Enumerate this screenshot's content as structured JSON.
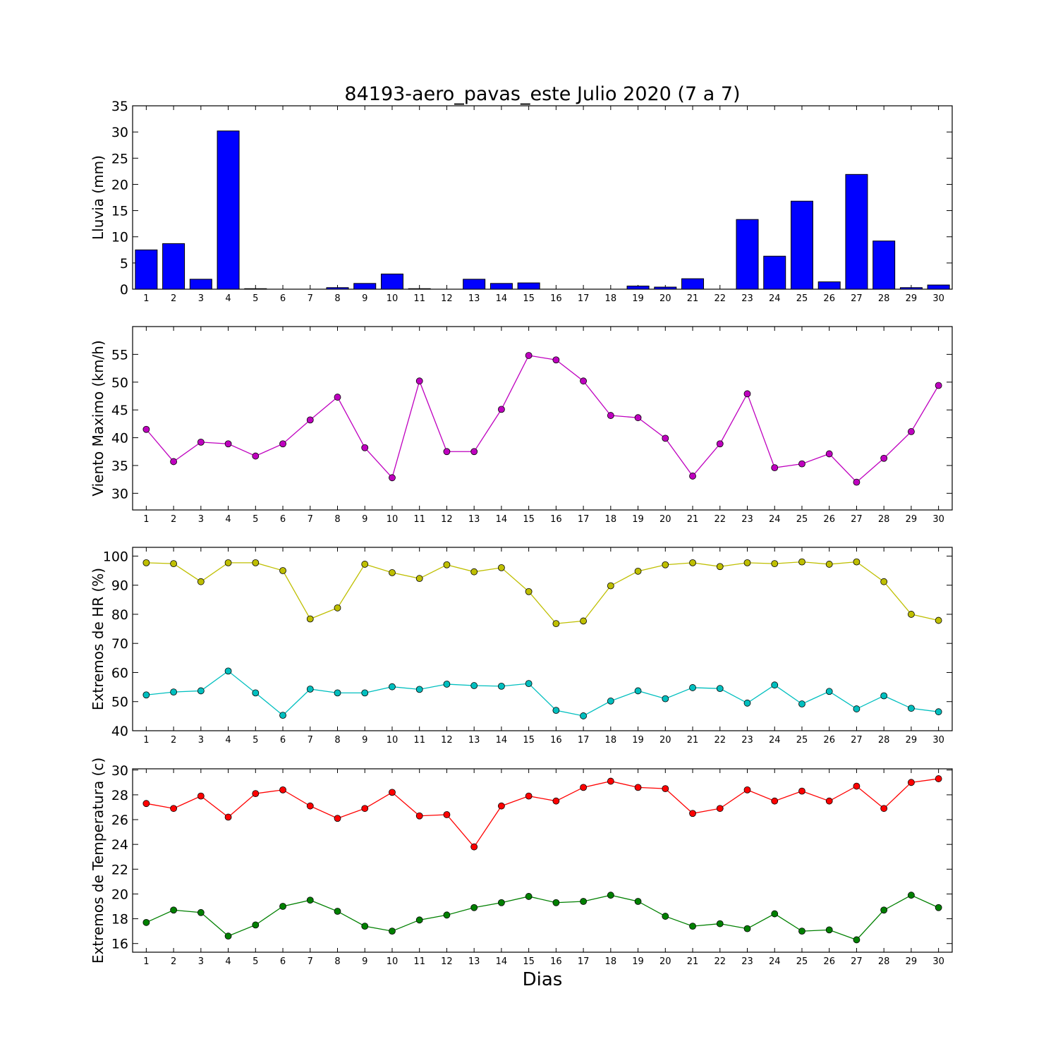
{
  "title": "84193-aero_pavas_este Julio 2020  (7 a 7)",
  "xlabel": "Dias",
  "chart_data": [
    {
      "type": "bar",
      "ylabel": "Lluvia (mm)",
      "ylim": [
        0,
        35
      ],
      "yticks": [
        0,
        5,
        10,
        15,
        20,
        25,
        30,
        35
      ],
      "categories": [
        1,
        2,
        3,
        4,
        5,
        6,
        7,
        8,
        9,
        10,
        11,
        12,
        13,
        14,
        15,
        16,
        17,
        18,
        19,
        20,
        21,
        22,
        23,
        24,
        25,
        26,
        27,
        28,
        29,
        30
      ],
      "series": [
        {
          "color": "#0000ff",
          "values": [
            7.5,
            8.7,
            1.9,
            30.2,
            0.1,
            0,
            0,
            0.3,
            1.1,
            2.9,
            0.1,
            0,
            1.9,
            1.1,
            1.2,
            0,
            0,
            0,
            0.6,
            0.4,
            2.0,
            0,
            13.3,
            6.3,
            16.8,
            1.4,
            21.9,
            9.2,
            0.3,
            0.8
          ]
        }
      ],
      "grid": false
    },
    {
      "type": "line",
      "ylabel": "Viento Maximo (km/h)",
      "ylim": [
        27,
        60
      ],
      "yticks": [
        30,
        35,
        40,
        45,
        50,
        55
      ],
      "categories": [
        1,
        2,
        3,
        4,
        5,
        6,
        7,
        8,
        9,
        10,
        11,
        12,
        13,
        14,
        15,
        16,
        17,
        18,
        19,
        20,
        21,
        22,
        23,
        24,
        25,
        26,
        27,
        28,
        29,
        30
      ],
      "series": [
        {
          "color": "#bf00bf",
          "values": [
            41.5,
            35.7,
            39.2,
            38.9,
            36.7,
            38.9,
            43.2,
            47.3,
            38.2,
            32.8,
            50.2,
            37.5,
            37.5,
            45.1,
            54.8,
            54.0,
            50.2,
            44.0,
            43.6,
            39.9,
            33.1,
            38.9,
            47.9,
            34.6,
            35.3,
            37.1,
            32.0,
            36.3,
            41.1,
            49.4
          ]
        }
      ],
      "grid": false
    },
    {
      "type": "line",
      "ylabel": "Extremos de HR (%)",
      "ylim": [
        40,
        103
      ],
      "yticks": [
        40,
        50,
        60,
        70,
        80,
        90,
        100
      ],
      "categories": [
        1,
        2,
        3,
        4,
        5,
        6,
        7,
        8,
        9,
        10,
        11,
        12,
        13,
        14,
        15,
        16,
        17,
        18,
        19,
        20,
        21,
        22,
        23,
        24,
        25,
        26,
        27,
        28,
        29,
        30
      ],
      "series": [
        {
          "color": "#bfbf00",
          "values": [
            97.7,
            97.4,
            91.2,
            97.7,
            97.7,
            95.0,
            78.4,
            82.2,
            97.2,
            94.3,
            92.3,
            97.0,
            94.6,
            96.0,
            87.8,
            76.8,
            77.7,
            89.8,
            94.8,
            97.0,
            97.7,
            96.4,
            97.7,
            97.4,
            98.0,
            97.2,
            98.0,
            91.2,
            80.0,
            77.9
          ]
        },
        {
          "color": "#00bfbf",
          "values": [
            52.3,
            53.3,
            53.7,
            60.5,
            53.0,
            45.3,
            54.3,
            53.0,
            53.0,
            55.1,
            54.2,
            56.0,
            55.5,
            55.3,
            56.2,
            47.0,
            45.1,
            50.2,
            53.7,
            51.0,
            54.8,
            54.5,
            49.5,
            55.7,
            49.2,
            53.5,
            47.5,
            52.0,
            47.7,
            46.5
          ]
        }
      ],
      "grid": false
    },
    {
      "type": "line",
      "ylabel": "Extremos de Temperatura (c)",
      "ylim": [
        15.3,
        30.1
      ],
      "yticks": [
        16,
        18,
        20,
        22,
        24,
        26,
        28,
        30
      ],
      "categories": [
        1,
        2,
        3,
        4,
        5,
        6,
        7,
        8,
        9,
        10,
        11,
        12,
        13,
        14,
        15,
        16,
        17,
        18,
        19,
        20,
        21,
        22,
        23,
        24,
        25,
        26,
        27,
        28,
        29,
        30
      ],
      "series": [
        {
          "color": "#ff0000",
          "values": [
            27.3,
            26.9,
            27.9,
            26.2,
            28.1,
            28.4,
            27.1,
            26.1,
            26.9,
            28.2,
            26.3,
            26.4,
            23.8,
            27.1,
            27.9,
            27.5,
            28.6,
            29.1,
            28.6,
            28.5,
            26.5,
            26.9,
            28.4,
            27.5,
            28.3,
            27.5,
            28.7,
            26.9,
            29.0,
            29.3
          ]
        },
        {
          "color": "#008000",
          "values": [
            17.7,
            18.7,
            18.5,
            16.6,
            17.5,
            19.0,
            19.5,
            18.6,
            17.4,
            17.0,
            17.9,
            18.3,
            18.9,
            19.3,
            19.8,
            19.3,
            19.4,
            19.9,
            19.4,
            18.2,
            17.4,
            17.6,
            17.2,
            18.4,
            17.0,
            17.1,
            16.3,
            18.7,
            19.9,
            18.9
          ]
        }
      ],
      "grid": false
    }
  ]
}
